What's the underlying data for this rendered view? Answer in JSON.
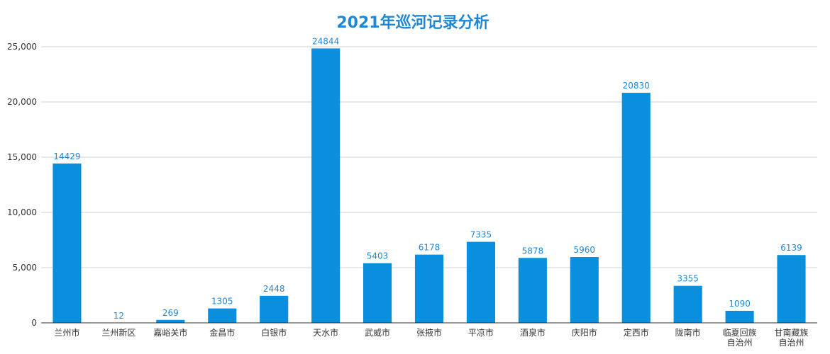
{
  "colors": {
    "bar": "#0a8fde",
    "label": "#1e88d6",
    "title": "#1e88d6"
  },
  "chart_data": {
    "type": "bar",
    "title": "2021年巡河记录分析",
    "xlabel": "",
    "ylabel": "",
    "ylim": [
      0,
      25000
    ],
    "yticks": [
      0,
      5000,
      10000,
      15000,
      20000,
      25000
    ],
    "ytick_labels": [
      "0",
      "5,000",
      "10,000",
      "15,000",
      "20,000",
      "25,000"
    ],
    "grid": true,
    "legend": "none",
    "categories": [
      "兰州市",
      "兰州新区",
      "嘉峪关市",
      "金昌市",
      "白银市",
      "天水市",
      "武威市",
      "张掖市",
      "平凉市",
      "酒泉市",
      "庆阳市",
      "定西市",
      "陇南市",
      "临夏回族\n自治州",
      "甘南藏族\n自治州"
    ],
    "values": [
      14429,
      12,
      269,
      1305,
      2448,
      24844,
      5403,
      6178,
      7335,
      5878,
      5960,
      20830,
      3355,
      1090,
      6139
    ]
  }
}
